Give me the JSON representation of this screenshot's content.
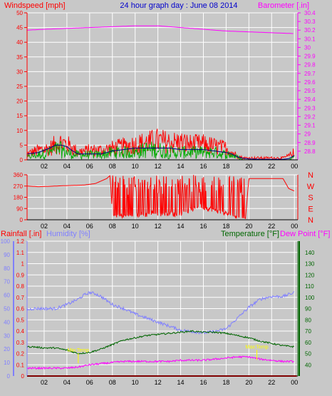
{
  "colors": {
    "wind": "#ff0000",
    "gust_dark": "#006600",
    "gust_green": "#00aa00",
    "wind_avg": "#000080",
    "barometer": "#ff00ff",
    "direction": "#ff0000",
    "rain": "#ff0000",
    "humidity": "#8080ff",
    "temperature": "#006600",
    "dewpoint": "#ff00ff",
    "title": "#0000cc",
    "axis": "#000000",
    "grid": "#ffffff",
    "plot_bg": "#c8c8c8",
    "annotation": "#ffff00"
  },
  "chart_data": [
    {
      "type": "line",
      "title": "24 hour graph day : June 08 2014",
      "ylabel": "Windspeed [mph]",
      "y2label": "Barometer [.in]",
      "x_ticks": [
        "02",
        "04",
        "06",
        "08",
        "10",
        "12",
        "14",
        "16",
        "18",
        "20",
        "22",
        "00"
      ],
      "xlim": [
        0.5,
        24.3
      ],
      "ylim": [
        0,
        50
      ],
      "y_ticks": [
        "0",
        "5",
        "10",
        "15",
        "20",
        "25",
        "30",
        "35",
        "40",
        "45",
        "50"
      ],
      "y2lim": [
        28.7,
        30.4
      ],
      "y2_ticks": [
        "28.8",
        "28.9",
        "29",
        "29.1",
        "29.2",
        "29.3",
        "29.4",
        "29.5",
        "29.6",
        "29.7",
        "29.8",
        "29.9",
        "30",
        "30.1",
        "30.2",
        "30.3",
        "30.4"
      ],
      "grid": true,
      "series": [
        {
          "role": "wind_gust",
          "x": [
            0.5,
            1.5,
            2.5,
            3.0,
            3.5,
            4.0,
            4.5,
            5.0,
            6.0,
            7.0,
            8.0,
            9.0,
            10.0,
            11.0,
            12.0,
            13.0,
            14.0,
            15.0,
            16.0,
            17.0,
            18.0,
            18.5,
            19.0,
            19.5,
            20.0,
            21.0,
            22.0,
            23.0,
            23.5,
            24.0
          ],
          "y": [
            3,
            5,
            6,
            8,
            9,
            8,
            6,
            4,
            5,
            5,
            6,
            7,
            8,
            9,
            10,
            9,
            9,
            8,
            8,
            7,
            6,
            4,
            2,
            1,
            1,
            1,
            1,
            1,
            2,
            4
          ]
        },
        {
          "role": "wind_speed",
          "x": [
            0.5,
            1.5,
            2.5,
            3.0,
            3.5,
            4.0,
            4.5,
            5.0,
            6.0,
            7.0,
            8.0,
            9.0,
            10.0,
            11.0,
            12.0,
            13.0,
            14.0,
            15.0,
            16.0,
            17.0,
            18.0,
            18.5,
            19.0,
            19.5,
            20.0,
            21.0,
            22.0,
            23.0,
            23.5,
            24.0
          ],
          "y": [
            1,
            2,
            3,
            4,
            4,
            3,
            2,
            2,
            2,
            2,
            3,
            3,
            3,
            4,
            4,
            3,
            3,
            3,
            3,
            3,
            2,
            2,
            1,
            0,
            0,
            0,
            0,
            0,
            0,
            1
          ]
        },
        {
          "role": "wind_average",
          "x": [
            0.5,
            1.5,
            2.5,
            3.0,
            3.5,
            4.0,
            4.5,
            5.0,
            6.0,
            7.0,
            8.0,
            9.0,
            10.0,
            11.0,
            12.0,
            13.0,
            14.0,
            15.0,
            16.0,
            17.0,
            18.0,
            18.5,
            19.0,
            19.5,
            20.0,
            21.0,
            22.0,
            23.0,
            23.5,
            24.0
          ],
          "y": [
            2,
            2.5,
            4,
            5,
            5,
            4.5,
            3,
            2,
            2,
            2,
            3,
            3.5,
            4,
            4,
            4,
            4,
            3.5,
            3.5,
            3.5,
            3,
            2.5,
            2,
            1,
            0.5,
            0.3,
            0.2,
            0.2,
            0.2,
            0.4,
            1.5
          ]
        },
        {
          "role": "barometer",
          "axis": "y2",
          "x": [
            0.5,
            2,
            4,
            6,
            8,
            10,
            11,
            12,
            13,
            14,
            16,
            18,
            20,
            22,
            24
          ],
          "y": [
            30.2,
            30.21,
            30.22,
            30.23,
            30.24,
            30.25,
            30.25,
            30.25,
            30.24,
            30.23,
            30.21,
            30.19,
            30.18,
            30.17,
            30.16
          ]
        }
      ]
    },
    {
      "type": "line",
      "x_ticks": [
        "02",
        "04",
        "06",
        "08",
        "10",
        "12",
        "14",
        "16",
        "18",
        "20",
        "22",
        "00"
      ],
      "xlim": [
        0.5,
        24.3
      ],
      "ylim": [
        0,
        360
      ],
      "y_ticks": [
        "0",
        "90",
        "180",
        "270",
        "360"
      ],
      "y2_ticks": [
        "N",
        "W",
        "S",
        "E",
        "N"
      ],
      "grid": true,
      "series": [
        {
          "role": "wind_direction",
          "x": [
            0.5,
            1.5,
            2.5,
            3.5,
            4.5,
            5.5,
            6.5,
            7.5,
            7.8,
            8.0,
            8.5,
            9.0,
            9.5,
            10.0,
            10.5,
            11.0,
            11.5,
            12.0,
            12.5,
            13.0,
            13.5,
            14.0,
            14.5,
            15.0,
            15.5,
            16.0,
            16.5,
            17.0,
            17.5,
            18.0,
            18.5,
            19.0,
            19.5,
            19.7,
            20.0,
            21.0,
            22.0,
            23.0,
            23.5,
            24.0
          ],
          "y": [
            270,
            265,
            268,
            272,
            275,
            278,
            290,
            330,
            355,
            30,
            40,
            30,
            35,
            40,
            45,
            40,
            60,
            50,
            45,
            60,
            40,
            50,
            70,
            80,
            110,
            100,
            90,
            80,
            60,
            50,
            40,
            30,
            20,
            10,
            330,
            330,
            330,
            330,
            250,
            230
          ]
        }
      ]
    },
    {
      "type": "line",
      "ylabel": "Rainfall [.in]",
      "ylabel2": "Humidity [%]",
      "y2label": "Temperature [°F]",
      "y2label2": "Dew Point [°F]",
      "x_ticks": [
        "02",
        "04",
        "06",
        "08",
        "10",
        "12",
        "14",
        "16",
        "18",
        "20",
        "22",
        "00"
      ],
      "xlim": [
        0.5,
        24.3
      ],
      "rain_lim": [
        0,
        1.2
      ],
      "rain_ticks": [
        "0",
        "0.1",
        "0.2",
        "0.3",
        "0.4",
        "0.5",
        "0.6",
        "0.7",
        "0.8",
        "0.9",
        "1",
        "1.1",
        "1.2"
      ],
      "humidity_lim": [
        0,
        100
      ],
      "humidity_ticks": [
        "0",
        "10",
        "20",
        "30",
        "40",
        "50",
        "60",
        "70",
        "80",
        "90",
        "100"
      ],
      "temp_lim": [
        30,
        150
      ],
      "temp_ticks": [
        "40",
        "50",
        "60",
        "70",
        "80",
        "90",
        "100",
        "110",
        "120",
        "130",
        "140"
      ],
      "grid": true,
      "annotations": [
        {
          "text": "Min:Temp",
          "x": 5,
          "y_temp": 49
        },
        {
          "text": "Max:Temp",
          "x": 20.7,
          "y_temp": 52
        }
      ],
      "series": [
        {
          "role": "humidity",
          "x": [
            0.5,
            1,
            2,
            3,
            4,
            5,
            5.5,
            6,
            6.5,
            7,
            8,
            9,
            10,
            11,
            12,
            13,
            14,
            15,
            16,
            17,
            18,
            19,
            20,
            21,
            22,
            23,
            24
          ],
          "y": [
            49,
            50,
            50,
            50,
            53,
            57,
            60,
            62,
            61,
            59,
            53,
            50,
            46,
            43,
            40,
            37,
            34,
            33,
            32,
            33,
            35,
            43,
            51,
            57,
            59,
            59,
            62
          ]
        },
        {
          "role": "temperature",
          "x": [
            0.5,
            1,
            2,
            3,
            4,
            5,
            6,
            7,
            8,
            9,
            10,
            11,
            12,
            13,
            14,
            15,
            16,
            17,
            18,
            19,
            20,
            21,
            22,
            23,
            24
          ],
          "y": [
            56,
            56,
            55,
            55,
            53,
            50,
            51,
            54,
            58,
            62,
            64,
            66,
            67,
            68,
            69,
            70,
            69,
            69,
            68,
            66,
            64,
            61,
            59,
            57,
            56
          ]
        },
        {
          "role": "dew_point",
          "x": [
            0.5,
            1,
            2,
            3,
            4,
            5,
            6,
            7,
            8,
            9,
            10,
            11,
            12,
            13,
            14,
            15,
            16,
            17,
            18,
            19,
            20,
            21,
            22,
            23,
            24
          ],
          "y": [
            37,
            37,
            37,
            37,
            37,
            38,
            40,
            41,
            42,
            43,
            43,
            43,
            43,
            43,
            44,
            44,
            44,
            45,
            46,
            47,
            47,
            45,
            44,
            43,
            43
          ]
        },
        {
          "role": "rainfall",
          "x": [
            0.5,
            24.2
          ],
          "y": [
            0,
            0
          ]
        }
      ]
    }
  ]
}
